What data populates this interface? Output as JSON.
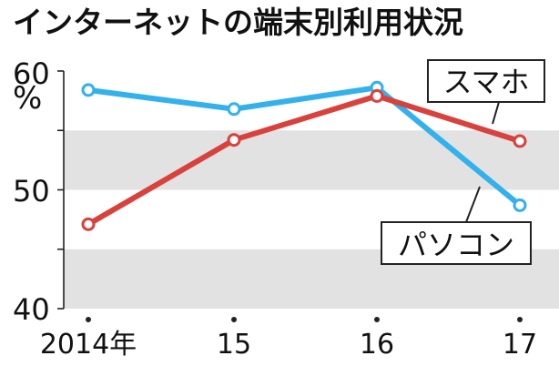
{
  "chart_data": {
    "type": "line",
    "title": "インターネットの端末別利用状況",
    "ylabel": "%",
    "ylim": [
      40,
      60
    ],
    "yticks": [
      "60",
      "50",
      "40"
    ],
    "categories": [
      "2014年",
      "15",
      "16",
      "17"
    ],
    "grid": "alternating horizontal bands",
    "series": [
      {
        "name": "スマホ",
        "values": [
          47.1,
          54.2,
          57.9,
          54.1
        ],
        "color": "#d9413c"
      },
      {
        "name": "パソコン",
        "values": [
          58.4,
          56.8,
          58.6,
          48.7
        ],
        "color": "#33b1ec"
      }
    ]
  }
}
